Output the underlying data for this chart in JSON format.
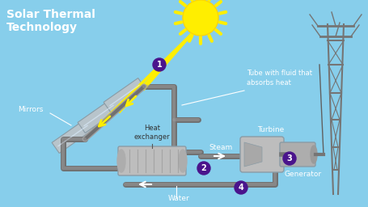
{
  "bg_color": "#87CEEB",
  "title_line1": "Solar Thermal",
  "title_line2": "Technology",
  "title_color": "#FFFFFF",
  "label_mirrors": "Mirrors",
  "label_tube": "Tube with fluid that\nabsorbs heat",
  "label_heat_exchanger": "Heat\nexchanger",
  "label_steam": "Steam",
  "label_turbine": "Turbine",
  "label_generator": "Generator",
  "label_water": "Water",
  "mirror_color": "#B8C4CB",
  "mirror_edge_color": "#8A9BA5",
  "pipe_color": "#9E9E9E",
  "pipe_edge_color": "#757575",
  "sun_color": "#FFEE00",
  "sun_edge_color": "#FFD700",
  "ray_color": "#FFEE00",
  "step_bg_color": "#4A148C",
  "step_text_color": "#FFFFFF",
  "label_color": "#FFFFFF",
  "component_color": "#BDBDBD",
  "arrow_color": "#FFFFFF",
  "tower_color": "#757575",
  "dark_pipe_color": "#8A9BA5"
}
